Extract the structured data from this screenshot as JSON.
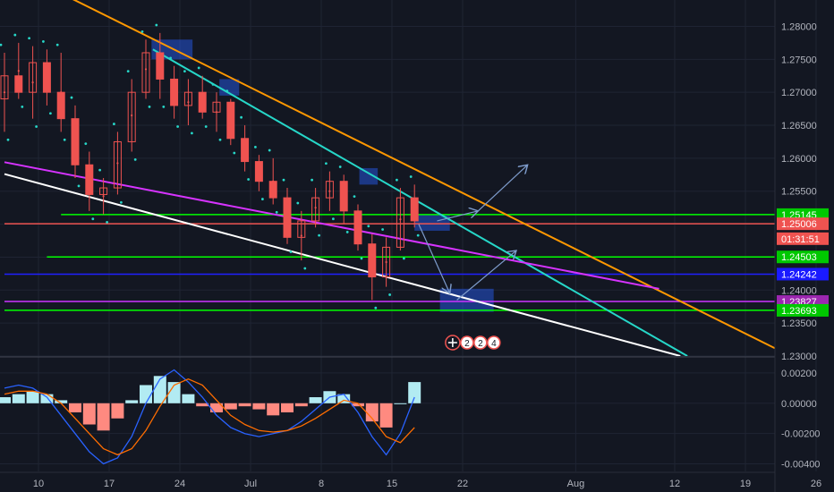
{
  "chart_data": {
    "type": "candlestick",
    "symbol_pair": "GBP/USD",
    "price_axis": {
      "range": [
        1.23,
        1.284
      ],
      "ticks": [
        "1.28000",
        "1.27500",
        "1.27000",
        "1.26500",
        "1.26000",
        "1.25500",
        "1.25000",
        "1.24500",
        "1.24000",
        "1.23500",
        "1.23000"
      ],
      "tick_values": [
        1.28,
        1.275,
        1.27,
        1.265,
        1.26,
        1.255,
        1.25,
        1.245,
        1.24,
        1.235,
        1.23
      ]
    },
    "time_axis": {
      "labels": [
        "10",
        "17",
        "24",
        "Jul",
        "8",
        "15",
        "22",
        "Aug",
        "12",
        "19",
        "26"
      ],
      "label_index": [
        0,
        5,
        10,
        15,
        20,
        25,
        30,
        38,
        45,
        50,
        55
      ]
    },
    "price_tags": [
      {
        "label": "1.25145",
        "value": 1.25145,
        "color": "#00c800"
      },
      {
        "label": "1.25006",
        "value": 1.25006,
        "color": "#ef5350"
      },
      {
        "label": "01:31:51",
        "value": 1.2478,
        "color": "#ef5350"
      },
      {
        "label": "1.24503",
        "value": 1.24503,
        "color": "#00c800"
      },
      {
        "label": "1.24242",
        "value": 1.24242,
        "color": "#1a1aff"
      },
      {
        "label": "1.23827",
        "value": 1.23827,
        "color": "#9c27b0"
      },
      {
        "label": "1.23693",
        "value": 1.23693,
        "color": "#00c800"
      }
    ],
    "horizontal_lines": [
      {
        "value": 1.25145,
        "color": "#00ff00",
        "from_index": 4
      },
      {
        "value": 1.25006,
        "color": "#ef5350",
        "from_index": 0
      },
      {
        "value": 1.24503,
        "color": "#00ff00",
        "from_index": 3
      },
      {
        "value": 1.24242,
        "color": "#2020ff",
        "from_index": 0
      },
      {
        "value": 1.23827,
        "color": "#cc33ff",
        "from_index": 0
      },
      {
        "value": 1.23693,
        "color": "#00ff00",
        "from_index": 0
      }
    ],
    "trend_lines": [
      {
        "name": "orange",
        "color": "#ff9800",
        "points": [
          [
            4.2,
            1.2848
          ],
          [
            55.6,
            1.23
          ]
        ]
      },
      {
        "name": "teal",
        "color": "#26d7c8",
        "points": [
          [
            10.5,
            1.2765
          ],
          [
            48.3,
            1.23
          ]
        ]
      },
      {
        "name": "magenta",
        "color": "#d633ff",
        "points": [
          [
            0,
            1.2594
          ],
          [
            46.3,
            1.2402
          ]
        ]
      },
      {
        "name": "white",
        "color": "#ffffff",
        "points": [
          [
            0,
            1.2576
          ],
          [
            47.8,
            1.23
          ]
        ]
      }
    ],
    "candles": [
      {
        "i": 0,
        "o": 1.269,
        "h": 1.276,
        "l": 1.264,
        "c": 1.2725
      },
      {
        "i": 1,
        "o": 1.2725,
        "h": 1.2775,
        "l": 1.269,
        "c": 1.27
      },
      {
        "i": 2,
        "o": 1.27,
        "h": 1.277,
        "l": 1.266,
        "c": 1.2745
      },
      {
        "i": 3,
        "o": 1.2745,
        "h": 1.2765,
        "l": 1.268,
        "c": 1.27
      },
      {
        "i": 4,
        "o": 1.27,
        "h": 1.276,
        "l": 1.264,
        "c": 1.266
      },
      {
        "i": 5,
        "o": 1.266,
        "h": 1.268,
        "l": 1.257,
        "c": 1.259
      },
      {
        "i": 6,
        "o": 1.259,
        "h": 1.261,
        "l": 1.252,
        "c": 1.2545
      },
      {
        "i": 7,
        "o": 1.2545,
        "h": 1.257,
        "l": 1.2515,
        "c": 1.2555
      },
      {
        "i": 8,
        "o": 1.2555,
        "h": 1.264,
        "l": 1.2545,
        "c": 1.2625
      },
      {
        "i": 9,
        "o": 1.2625,
        "h": 1.272,
        "l": 1.261,
        "c": 1.27
      },
      {
        "i": 10,
        "o": 1.27,
        "h": 1.278,
        "l": 1.269,
        "c": 1.276
      },
      {
        "i": 11,
        "o": 1.276,
        "h": 1.279,
        "l": 1.269,
        "c": 1.272
      },
      {
        "i": 12,
        "o": 1.272,
        "h": 1.274,
        "l": 1.266,
        "c": 1.268
      },
      {
        "i": 13,
        "o": 1.268,
        "h": 1.272,
        "l": 1.265,
        "c": 1.27
      },
      {
        "i": 14,
        "o": 1.27,
        "h": 1.2725,
        "l": 1.266,
        "c": 1.267
      },
      {
        "i": 15,
        "o": 1.267,
        "h": 1.27,
        "l": 1.264,
        "c": 1.2685
      },
      {
        "i": 16,
        "o": 1.2685,
        "h": 1.269,
        "l": 1.262,
        "c": 1.263
      },
      {
        "i": 17,
        "o": 1.263,
        "h": 1.265,
        "l": 1.258,
        "c": 1.2595
      },
      {
        "i": 18,
        "o": 1.2595,
        "h": 1.2605,
        "l": 1.255,
        "c": 1.2565
      },
      {
        "i": 19,
        "o": 1.2565,
        "h": 1.26,
        "l": 1.253,
        "c": 1.254
      },
      {
        "i": 20,
        "o": 1.254,
        "h": 1.2555,
        "l": 1.247,
        "c": 1.248
      },
      {
        "i": 21,
        "o": 1.248,
        "h": 1.252,
        "l": 1.2445,
        "c": 1.2505
      },
      {
        "i": 22,
        "o": 1.2505,
        "h": 1.2555,
        "l": 1.2495,
        "c": 1.254
      },
      {
        "i": 23,
        "o": 1.254,
        "h": 1.258,
        "l": 1.252,
        "c": 1.2565
      },
      {
        "i": 24,
        "o": 1.2565,
        "h": 1.2575,
        "l": 1.25,
        "c": 1.252
      },
      {
        "i": 25,
        "o": 1.252,
        "h": 1.253,
        "l": 1.246,
        "c": 1.247
      },
      {
        "i": 26,
        "o": 1.247,
        "h": 1.2485,
        "l": 1.2385,
        "c": 1.242
      },
      {
        "i": 27,
        "o": 1.242,
        "h": 1.248,
        "l": 1.2405,
        "c": 1.2465
      },
      {
        "i": 28,
        "o": 1.2465,
        "h": 1.2555,
        "l": 1.246,
        "c": 1.254
      },
      {
        "i": 29,
        "o": 1.254,
        "h": 1.256,
        "l": 1.2495,
        "c": 1.2505
      }
    ],
    "rectangles": [
      {
        "name": "supply-zone-1",
        "x0": 10.4,
        "x1": 13.3,
        "y0": 1.278,
        "y1": 1.275
      },
      {
        "name": "supply-zone-2",
        "x0": 15.2,
        "x1": 16.6,
        "y0": 1.272,
        "y1": 1.2695
      },
      {
        "name": "supply-zone-3",
        "x0": 25.1,
        "x1": 26.4,
        "y0": 1.2585,
        "y1": 1.256
      },
      {
        "name": "entry-zone",
        "x0": 29.0,
        "x1": 31.5,
        "y0": 1.2515,
        "y1": 1.249
      },
      {
        "name": "target-zone",
        "x0": 30.8,
        "x1": 34.6,
        "y0": 1.2402,
        "y1": 1.2367
      }
    ],
    "arrows": [
      {
        "from": [
          29.3,
          1.25
        ],
        "to": [
          31.5,
          1.2395
        ]
      },
      {
        "from": [
          32.0,
          1.2385
        ],
        "to": [
          36.2,
          1.246
        ]
      },
      {
        "from": [
          30.6,
          1.2505
        ],
        "to": [
          33.5,
          1.252
        ]
      },
      {
        "from": [
          33.5,
          1.252
        ],
        "to": [
          37.0,
          1.259
        ]
      }
    ],
    "event_badges": [
      "2",
      "2",
      "4"
    ],
    "oscillator": {
      "range": [
        -0.0045,
        0.003
      ],
      "ticks": [
        "0.00200",
        "0.00000",
        "-0.00200",
        "-0.00400"
      ],
      "tick_values": [
        0.002,
        0.0,
        -0.002,
        -0.004
      ],
      "histogram": [
        0.0004,
        0.0006,
        0.0008,
        0.0006,
        0.0002,
        -0.0006,
        -0.0014,
        -0.0018,
        -0.001,
        0.0002,
        0.0012,
        0.0018,
        0.0014,
        0.0006,
        -0.0002,
        -0.0006,
        -0.0004,
        -0.0002,
        -0.0004,
        -0.0008,
        -0.0006,
        -0.0002,
        0.0004,
        0.0008,
        0.0006,
        -0.0002,
        -0.0012,
        -0.0016,
        0.0,
        0.0014
      ],
      "macd": [
        0.001,
        0.0012,
        0.001,
        0.0004,
        -0.0008,
        -0.002,
        -0.0032,
        -0.004,
        -0.0036,
        -0.0022,
        0.0,
        0.0016,
        0.0022,
        0.0014,
        0.0004,
        -0.0008,
        -0.0016,
        -0.002,
        -0.0022,
        -0.002,
        -0.0018,
        -0.0012,
        -0.0004,
        0.0004,
        0.0006,
        -0.0006,
        -0.0022,
        -0.0034,
        -0.002,
        0.0004
      ],
      "signal": [
        0.0006,
        0.0008,
        0.0008,
        0.0006,
        0.0,
        -0.001,
        -0.002,
        -0.003,
        -0.0034,
        -0.003,
        -0.0018,
        -0.0002,
        0.0012,
        0.0016,
        0.0012,
        0.0002,
        -0.0008,
        -0.0014,
        -0.0018,
        -0.0019,
        -0.0018,
        -0.0015,
        -0.001,
        -0.0004,
        0.0002,
        0.0,
        -0.001,
        -0.0022,
        -0.0026,
        -0.0016
      ]
    },
    "colors": {
      "background": "#131722",
      "grid": "#1f2433",
      "up_candle": "#ef5350",
      "down_candle": "#ef5350",
      "psar": "#26d7c8",
      "midline": "#ef5350",
      "hist_pos": "#b2ebf2",
      "hist_neg": "#ff8a80",
      "macd_line": "#2962ff",
      "signal_line": "#ff6d00"
    }
  }
}
